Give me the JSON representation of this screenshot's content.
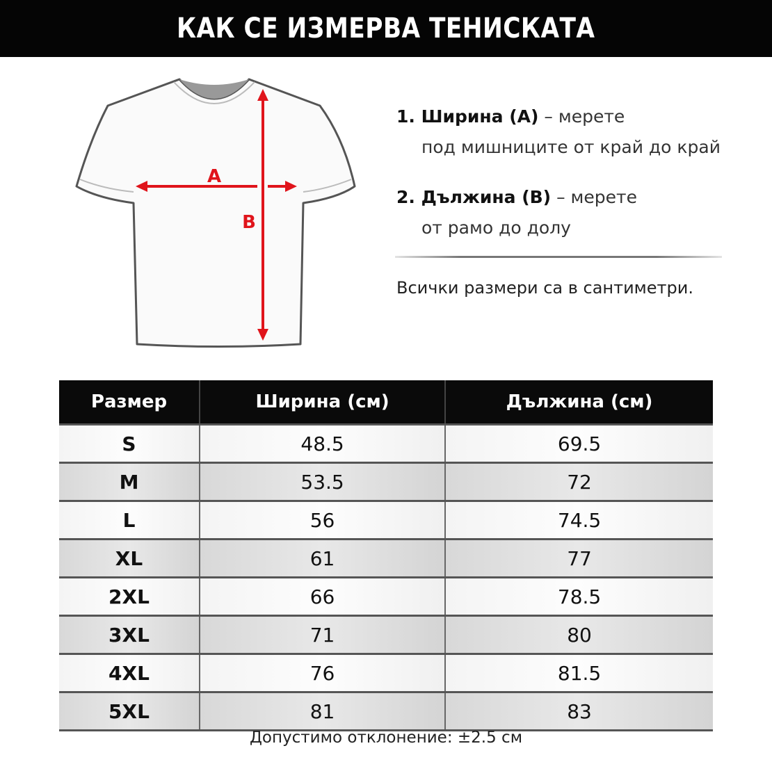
{
  "title": "КАК СЕ ИЗМЕРВА ТЕНИСКАТА",
  "diagram": {
    "label_a": "A",
    "label_b": "B",
    "arrow_color": "#e0141b"
  },
  "instructions": [
    {
      "label": "1. Ширина (A)",
      "text": "– мерете",
      "detail": "под мишниците от край до край"
    },
    {
      "label": "2. Дължина (B)",
      "text": "– мерете",
      "detail": "от рамо до долу"
    }
  ],
  "units_note": "Всички размери са в сантиметри.",
  "table": {
    "headers": [
      "Размер",
      "Ширина (см)",
      "Дължина (см)"
    ],
    "rows": [
      [
        "S",
        "48.5",
        "69.5"
      ],
      [
        "M",
        "53.5",
        "72"
      ],
      [
        "L",
        "56",
        "74.5"
      ],
      [
        "XL",
        "61",
        "77"
      ],
      [
        "2XL",
        "66",
        "78.5"
      ],
      [
        "3XL",
        "71",
        "80"
      ],
      [
        "4XL",
        "76",
        "81.5"
      ],
      [
        "5XL",
        "81",
        "83"
      ]
    ]
  },
  "tolerance": "Допустимо отклонение:  ±2.5 см"
}
